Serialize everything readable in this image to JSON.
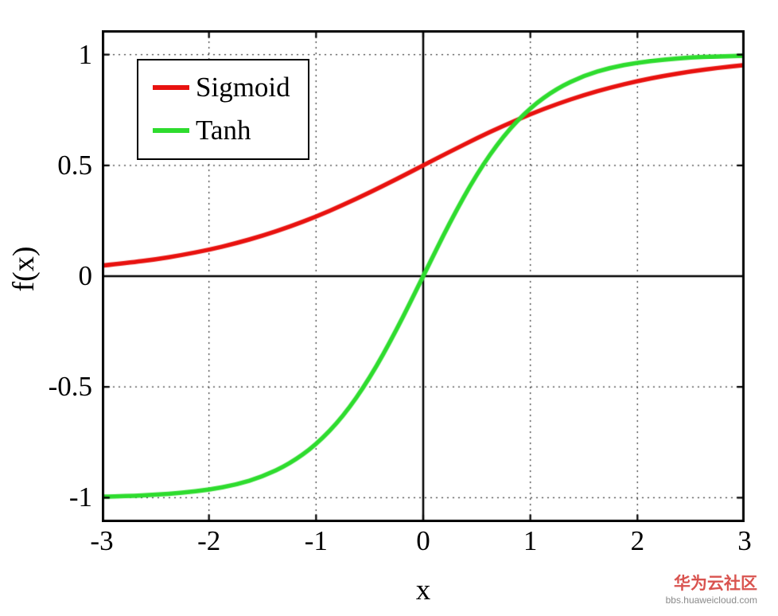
{
  "chart_data": {
    "type": "line",
    "title": "",
    "xlabel": "x",
    "ylabel": "f(x)",
    "xlim": [
      -3,
      3
    ],
    "ylim": [
      -1.11,
      1.11
    ],
    "x_ticks": [
      -3,
      -2,
      -1,
      0,
      1,
      2,
      3
    ],
    "y_ticks": [
      -1,
      -0.5,
      0,
      0.5,
      1
    ],
    "grid": true,
    "grid_style": "dotted",
    "zero_axis_lines": true,
    "legend": {
      "position": "top-left"
    },
    "x": [
      -3,
      -2.75,
      -2.5,
      -2.25,
      -2,
      -1.75,
      -1.5,
      -1.25,
      -1,
      -0.75,
      -0.5,
      -0.25,
      0,
      0.25,
      0.5,
      0.75,
      1,
      1.25,
      1.5,
      1.75,
      2,
      2.25,
      2.5,
      2.75,
      3
    ],
    "series": [
      {
        "name": "Sigmoid",
        "color": "#e8120f",
        "values": [
          0.0474,
          0.0601,
          0.0759,
          0.0953,
          0.1192,
          0.148,
          0.1824,
          0.2227,
          0.2689,
          0.3208,
          0.3775,
          0.4378,
          0.5,
          0.5622,
          0.6225,
          0.6792,
          0.7311,
          0.7773,
          0.8176,
          0.852,
          0.8808,
          0.9047,
          0.9241,
          0.9399,
          0.9526
        ]
      },
      {
        "name": "Tanh",
        "color": "#2edc2e",
        "values": [
          -0.9951,
          -0.9919,
          -0.9866,
          -0.978,
          -0.964,
          -0.9414,
          -0.9051,
          -0.8483,
          -0.7616,
          -0.6351,
          -0.4621,
          -0.2449,
          0,
          0.2449,
          0.4621,
          0.6351,
          0.7616,
          0.8483,
          0.9051,
          0.9414,
          0.964,
          0.978,
          0.9866,
          0.9919,
          0.9951
        ]
      }
    ]
  },
  "watermark": {
    "title": "华为云社区",
    "subtitle": "bbs.huaweicloud.com",
    "color": "#d9534f"
  }
}
